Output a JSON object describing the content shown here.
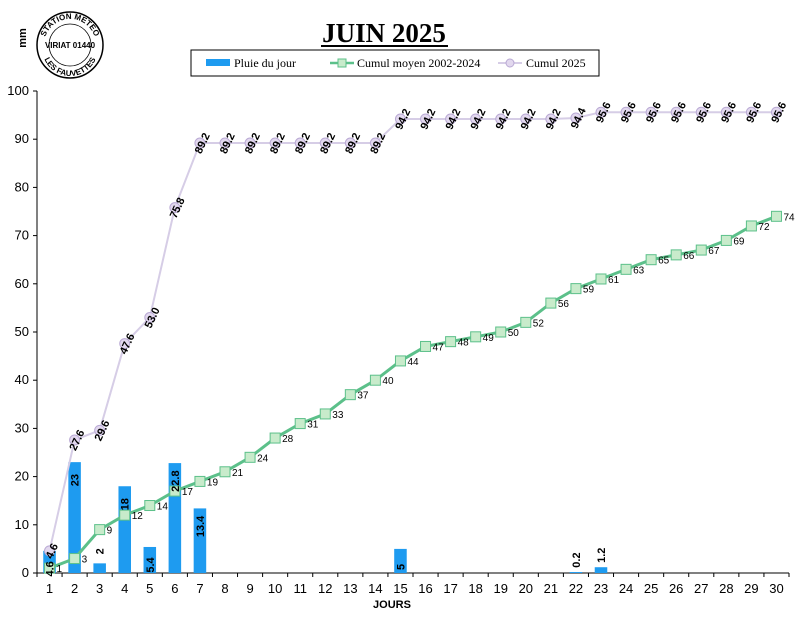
{
  "chart_data": {
    "type": "bar",
    "title": "JUIN 2025",
    "ylabel": "mm",
    "xlabel": "JOURS",
    "ylim": [
      0,
      100
    ],
    "yticks": [
      0,
      10,
      20,
      30,
      40,
      50,
      60,
      70,
      80,
      90,
      100
    ],
    "x": [
      1,
      2,
      3,
      4,
      5,
      6,
      7,
      8,
      9,
      10,
      11,
      12,
      13,
      14,
      15,
      16,
      17,
      18,
      19,
      20,
      21,
      22,
      23,
      24,
      25,
      26,
      27,
      28,
      29,
      30
    ],
    "grid": false,
    "legend_position": "top",
    "series": [
      {
        "name": "Pluie du jour",
        "type": "bar",
        "color": "#1E9BF0",
        "values": [
          4.6,
          23,
          2,
          18,
          5.4,
          22.8,
          13.4,
          0,
          0,
          0,
          0,
          0,
          0,
          0,
          5,
          0,
          0,
          0,
          0,
          0,
          0,
          0.2,
          1.2,
          0,
          0,
          0,
          0,
          0,
          0,
          0
        ],
        "labels": [
          "4.6",
          "23",
          "2",
          "18",
          "5.4",
          "22.8",
          "13.4",
          "",
          "",
          "",
          "",
          "",
          "",
          "",
          "5",
          "",
          "",
          "",
          "",
          "",
          "",
          "0.2",
          "1.2",
          "",
          "",
          "",
          "",
          "",
          "",
          ""
        ]
      },
      {
        "name": "Cumul moyen 2002-2024",
        "type": "line",
        "color": "#5CC08A",
        "values": [
          1,
          3,
          9,
          12,
          14,
          17,
          19,
          21,
          24,
          28,
          31,
          33,
          37,
          40,
          44,
          47,
          48,
          49,
          50,
          52,
          56,
          59,
          61,
          63,
          65,
          66,
          67,
          69,
          72,
          74
        ],
        "labels": [
          "1",
          "3",
          "9",
          "12",
          "14",
          "17",
          "19",
          "21",
          "24",
          "28",
          "31",
          "33",
          "37",
          "40",
          "44",
          "47",
          "48",
          "49",
          "50",
          "52",
          "56",
          "59",
          "61",
          "63",
          "65",
          "66",
          "67",
          "69",
          "72",
          "74"
        ]
      },
      {
        "name": "Cumul 2025",
        "type": "line",
        "color": "#D6CDE6",
        "values": [
          4.6,
          27.6,
          29.6,
          47.6,
          53.0,
          75.8,
          89.2,
          89.2,
          89.2,
          89.2,
          89.2,
          89.2,
          89.2,
          89.2,
          94.2,
          94.2,
          94.2,
          94.2,
          94.2,
          94.2,
          94.2,
          94.4,
          95.6,
          95.6,
          95.6,
          95.6,
          95.6,
          95.6,
          95.6,
          95.6
        ],
        "labels": [
          "4.6",
          "27.6",
          "29.6",
          "47.6",
          "53.0",
          "75.8",
          "89.2",
          "89.2",
          "89.2",
          "89.2",
          "89.2",
          "89.2",
          "89.2",
          "89.2",
          "94.2",
          "94.2",
          "94.2",
          "94.2",
          "94.2",
          "94.2",
          "94.2",
          "94.4",
          "95.6",
          "95.6",
          "95.6",
          "95.6",
          "95.6",
          "95.6",
          "95.6",
          "95.6"
        ]
      }
    ]
  },
  "logo": {
    "top_text": "STATION METEO",
    "middle_text": "VIRIAT 01440",
    "bottom_text": "LES FAUVETTES"
  }
}
